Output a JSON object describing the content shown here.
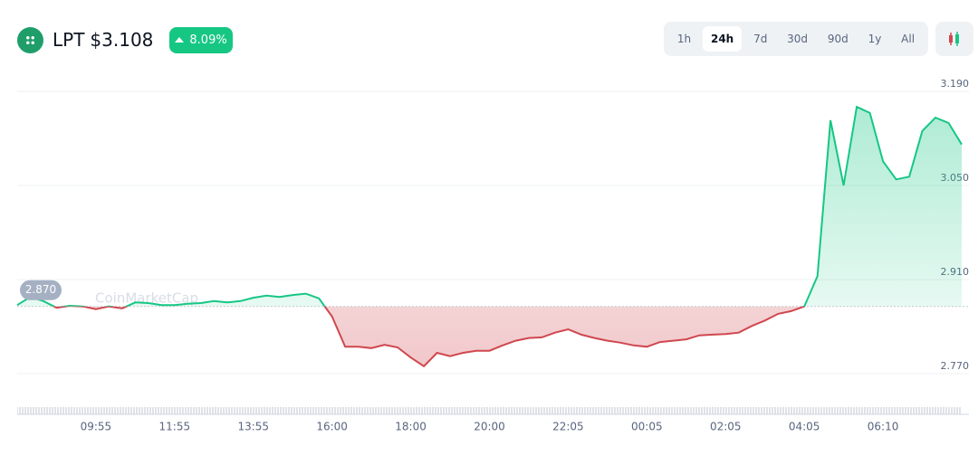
{
  "header": {
    "symbol": "LPT",
    "price": "$3.108",
    "change": "8.09%"
  },
  "timeframes": [
    "1h",
    "24h",
    "7d",
    "30d",
    "90d",
    "1y",
    "All"
  ],
  "selected_timeframe": 1,
  "chart_data": {
    "type": "line",
    "watermark": "CoinMarketCap",
    "categories": [
      null,
      null,
      null,
      null,
      null,
      null,
      "09:55",
      null,
      null,
      null,
      null,
      null,
      "11:55",
      null,
      null,
      null,
      null,
      null,
      "13:55",
      null,
      null,
      null,
      null,
      null,
      "16:00",
      null,
      null,
      null,
      null,
      null,
      "18:00",
      null,
      null,
      null,
      null,
      null,
      "20:00",
      null,
      null,
      null,
      null,
      null,
      "22:05",
      null,
      null,
      null,
      null,
      null,
      "00:05",
      null,
      null,
      null,
      null,
      null,
      "02:05",
      null,
      null,
      null,
      null,
      null,
      "04:05",
      null,
      null,
      null,
      null,
      null,
      "06:10",
      null,
      null,
      null,
      null,
      null,
      null
    ],
    "values": [
      2.872,
      2.884,
      2.878,
      2.868,
      2.871,
      2.87,
      2.866,
      2.87,
      2.867,
      2.876,
      2.875,
      2.872,
      2.872,
      2.874,
      2.875,
      2.878,
      2.876,
      2.878,
      2.883,
      2.886,
      2.884,
      2.887,
      2.889,
      2.882,
      2.855,
      2.81,
      2.81,
      2.808,
      2.813,
      2.809,
      2.794,
      2.781,
      2.801,
      2.796,
      2.801,
      2.804,
      2.804,
      2.812,
      2.819,
      2.823,
      2.824,
      2.831,
      2.836,
      2.828,
      2.823,
      2.819,
      2.816,
      2.812,
      2.81,
      2.817,
      2.819,
      2.821,
      2.827,
      2.828,
      2.829,
      2.831,
      2.841,
      2.849,
      2.859,
      2.863,
      2.87,
      2.915,
      3.147,
      3.05,
      3.167,
      3.158,
      3.086,
      3.059,
      3.063,
      3.131,
      3.151,
      3.143,
      3.111
    ],
    "baseline": {
      "value": 2.87,
      "label": "2.870"
    },
    "up_color": "#16c784",
    "down_color": "#d0474f",
    "ylim": [
      2.74,
      3.21
    ],
    "yticks": [
      {
        "value": 2.77,
        "label": "2.770"
      },
      {
        "value": 2.91,
        "label": "2.910"
      },
      {
        "value": 3.05,
        "label": "3.050"
      },
      {
        "value": 3.19,
        "label": "3.190"
      }
    ],
    "grid": true
  }
}
